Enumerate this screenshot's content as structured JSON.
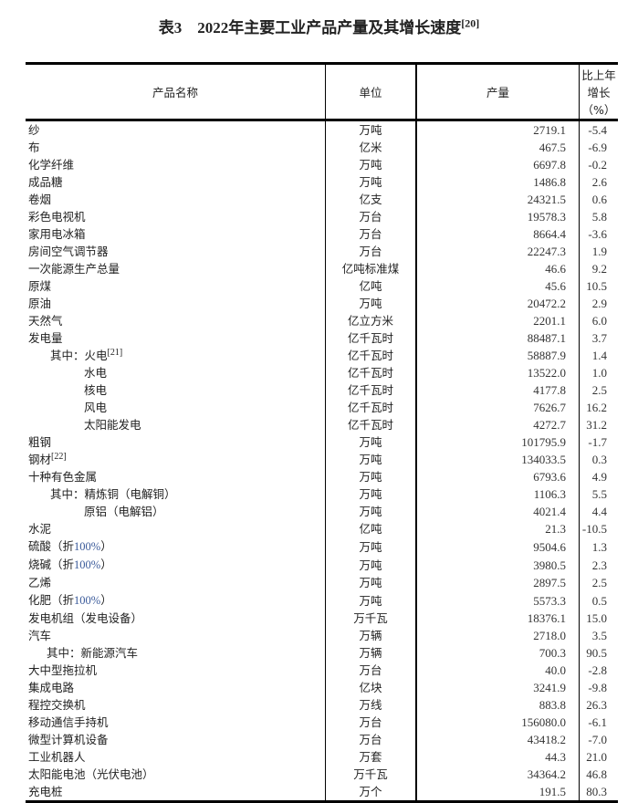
{
  "title": {
    "text": "表3　2022年主要工业产品产量及其增长速度",
    "note": "[20]"
  },
  "headers": [
    "产品名称",
    "单位",
    "产量",
    "比上年增长（%）"
  ],
  "rows": [
    {
      "name": "纱",
      "unit": "万吨",
      "value": "2719.1",
      "growth": "-5.4"
    },
    {
      "name": "布",
      "unit": "亿米",
      "value": "467.5",
      "growth": "-6.9"
    },
    {
      "name": "化学纤维",
      "unit": "万吨",
      "value": "6697.8",
      "growth": "-0.2"
    },
    {
      "name": "成品糖",
      "unit": "万吨",
      "value": "1486.8",
      "growth": "2.6"
    },
    {
      "name": "卷烟",
      "unit": "亿支",
      "value": "24321.5",
      "growth": "0.6"
    },
    {
      "name": "彩色电视机",
      "unit": "万台",
      "value": "19578.3",
      "growth": "5.8"
    },
    {
      "name": "家用电冰箱",
      "unit": "万台",
      "value": "8664.4",
      "growth": "-3.6"
    },
    {
      "name": "房间空气调节器",
      "unit": "万台",
      "value": "22247.3",
      "growth": "1.9"
    },
    {
      "name": "一次能源生产总量",
      "unit": "亿吨标准煤",
      "value": "46.6",
      "growth": "9.2"
    },
    {
      "name": "原煤",
      "unit": "亿吨",
      "value": "45.6",
      "growth": "10.5"
    },
    {
      "name": "原油",
      "unit": "万吨",
      "value": "20472.2",
      "growth": "2.9"
    },
    {
      "name": "天然气",
      "unit": "亿立方米",
      "value": "2201.1",
      "growth": "6.0"
    },
    {
      "name": "发电量",
      "unit": "亿千瓦时",
      "value": "88487.1",
      "growth": "3.7"
    },
    {
      "name": "其中：火电",
      "sup": "[21]",
      "indent": 1,
      "unit": "亿千瓦时",
      "value": "58887.9",
      "growth": "1.4"
    },
    {
      "name": "水电",
      "indent": 2,
      "unit": "亿千瓦时",
      "value": "13522.0",
      "growth": "1.0"
    },
    {
      "name": "核电",
      "indent": 2,
      "unit": "亿千瓦时",
      "value": "4177.8",
      "growth": "2.5"
    },
    {
      "name": "风电",
      "indent": 2,
      "unit": "亿千瓦时",
      "value": "7626.7",
      "growth": "16.2"
    },
    {
      "name": "太阳能发电",
      "indent": 2,
      "unit": "亿千瓦时",
      "value": "4272.7",
      "growth": "31.2"
    },
    {
      "name": "粗钢",
      "unit": "万吨",
      "value": "101795.9",
      "growth": "-1.7"
    },
    {
      "name": "钢材",
      "sup": "[22]",
      "unit": "万吨",
      "value": "134033.5",
      "growth": "0.3"
    },
    {
      "name": "十种有色金属",
      "unit": "万吨",
      "value": "6793.6",
      "growth": "4.9"
    },
    {
      "name": "其中：精炼铜（电解铜）",
      "indent": 1,
      "unit": "万吨",
      "value": "1106.3",
      "growth": "5.5"
    },
    {
      "name": "原铝（电解铝）",
      "indent": 2,
      "unit": "万吨",
      "value": "4021.4",
      "growth": "4.4"
    },
    {
      "name": "水泥",
      "unit": "亿吨",
      "value": "21.3",
      "growth": "-10.5"
    },
    {
      "name": "硫酸（折",
      "pct": "100%",
      "tail": "）",
      "unit": "万吨",
      "value": "9504.6",
      "growth": "1.3"
    },
    {
      "name": "烧碱（折",
      "pct": "100%",
      "tail": "）",
      "unit": "万吨",
      "value": "3980.5",
      "growth": "2.3"
    },
    {
      "name": "乙烯",
      "unit": "万吨",
      "value": "2897.5",
      "growth": "2.5"
    },
    {
      "name": "化肥（折",
      "pct": "100%",
      "tail": "）",
      "unit": "万吨",
      "value": "5573.3",
      "growth": "0.5"
    },
    {
      "name": "发电机组（发电设备）",
      "unit": "万千瓦",
      "value": "18376.1",
      "growth": "15.0"
    },
    {
      "name": "汽车",
      "unit": "万辆",
      "value": "2718.0",
      "growth": "3.5"
    },
    {
      "name": "其中：新能源汽车",
      "indent": 3,
      "unit": "万辆",
      "value": "700.3",
      "growth": "90.5"
    },
    {
      "name": "大中型拖拉机",
      "unit": "万台",
      "value": "40.0",
      "growth": "-2.8"
    },
    {
      "name": "集成电路",
      "unit": "亿块",
      "value": "3241.9",
      "growth": "-9.8"
    },
    {
      "name": "程控交换机",
      "unit": "万线",
      "value": "883.8",
      "growth": "26.3"
    },
    {
      "name": "移动通信手持机",
      "unit": "万台",
      "value": "156080.0",
      "growth": "-6.1"
    },
    {
      "name": "微型计算机设备",
      "unit": "万台",
      "value": "43418.2",
      "growth": "-7.0"
    },
    {
      "name": "工业机器人",
      "unit": "万套",
      "value": "44.3",
      "growth": "21.0"
    },
    {
      "name": "太阳能电池（光伏电池）",
      "unit": "万千瓦",
      "value": "34364.2",
      "growth": "46.8"
    },
    {
      "name": "充电桩",
      "unit": "万个",
      "value": "191.5",
      "growth": "80.3"
    }
  ]
}
